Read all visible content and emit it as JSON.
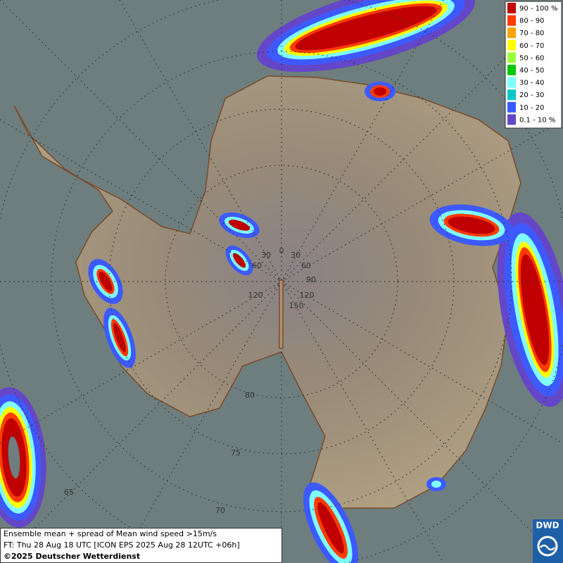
{
  "legend": [
    {
      "label": "90 - 100 %",
      "color": "#c00000"
    },
    {
      "label": "80 - 90",
      "color": "#ff3c00"
    },
    {
      "label": "70 - 80",
      "color": "#ffa500"
    },
    {
      "label": "60 - 70",
      "color": "#ffff00"
    },
    {
      "label": "50 - 60",
      "color": "#9cff3c"
    },
    {
      "label": "40 - 50",
      "color": "#00c800"
    },
    {
      "label": "30 - 40",
      "color": "#80ffff"
    },
    {
      "label": "20 - 30",
      "color": "#00c8c8"
    },
    {
      "label": "10 - 20",
      "color": "#3c5aff"
    },
    {
      "label": "0.1 - 10 %",
      "color": "#6446c8"
    }
  ],
  "graticule_labels": [
    "0",
    "30",
    "30",
    "60",
    "60",
    "90",
    "120",
    "120",
    "150",
    "80",
    "75",
    "70",
    "65"
  ],
  "footer": {
    "line1": "Ensemble mean + spread of Mean wind speed >15m/s",
    "line2": "FT: Thu 28 Aug 18 UTC [ICON EPS 2025 Aug 28 12UTC +06h]",
    "line3": "©2025 Deutscher Wetterdienst"
  },
  "logo": "DWD"
}
